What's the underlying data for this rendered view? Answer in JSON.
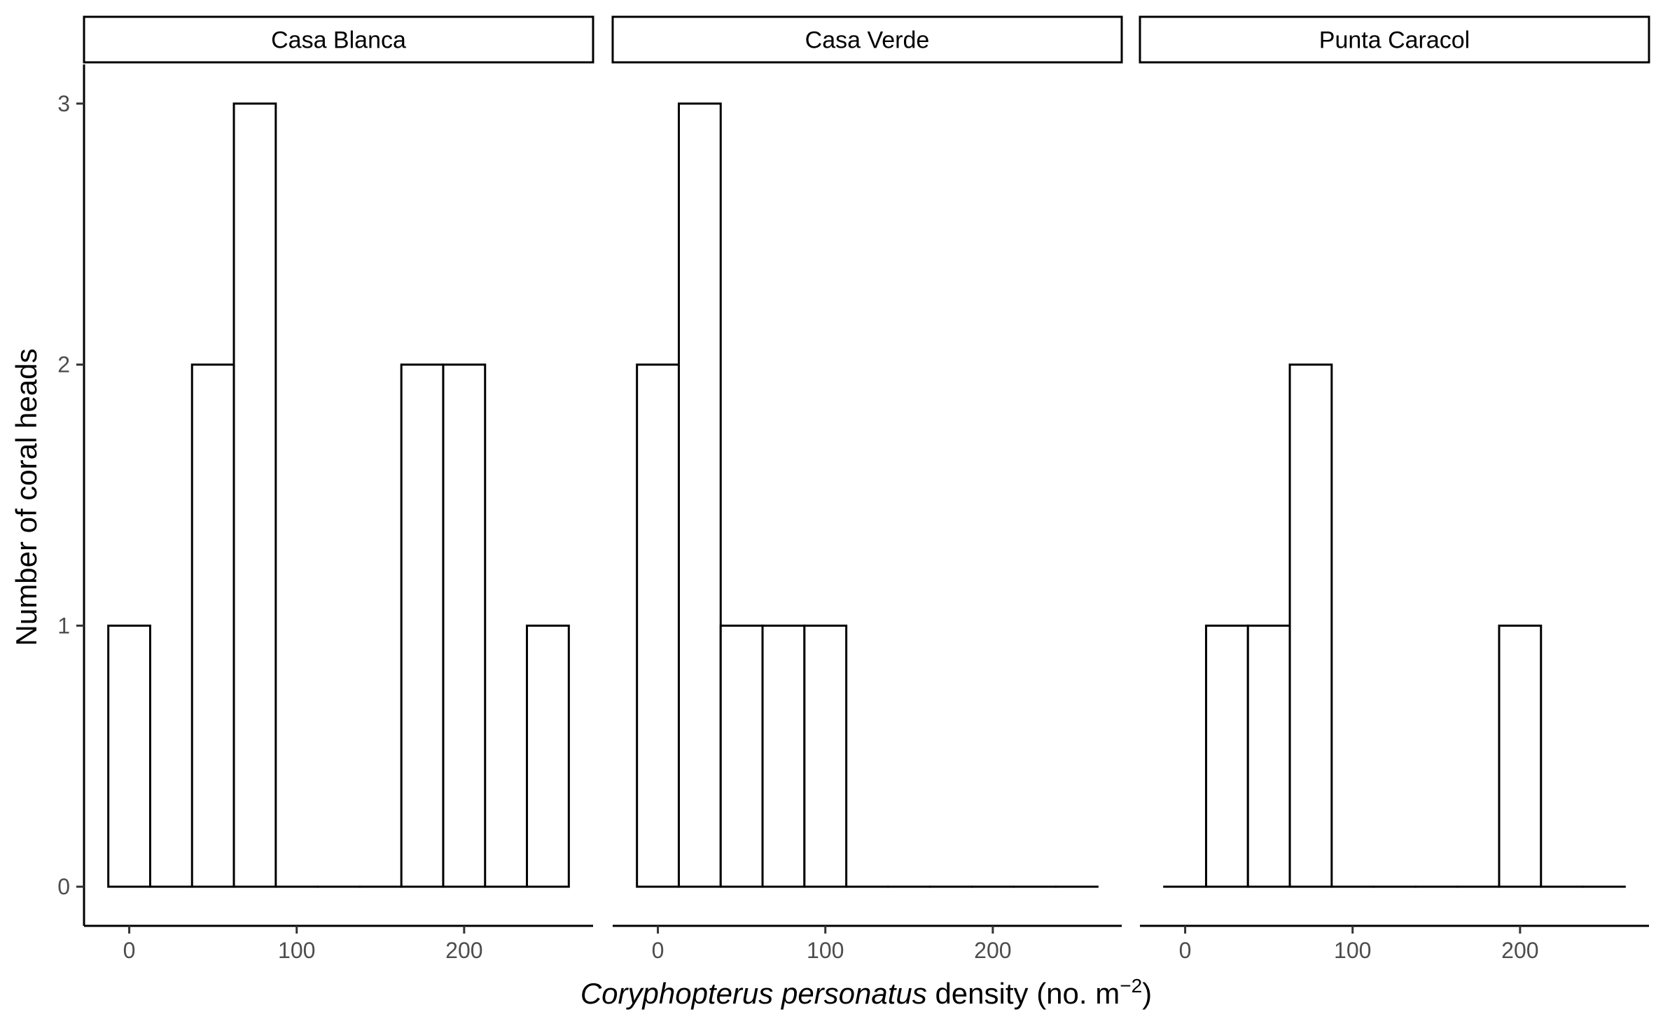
{
  "chart_data": {
    "type": "bar",
    "subtype": "faceted histogram",
    "ylabel": "Number of coral heads",
    "xlabel": {
      "italic": "Coryphopterus personatus",
      "plain": " density (no. m",
      "superscript": "−2",
      "close": ")"
    },
    "xlim": [
      -27,
      277
    ],
    "ylim": [
      -0.15,
      3.15
    ],
    "x_ticks": [
      0,
      100,
      200
    ],
    "x_tick_labels": [
      "0",
      "100",
      "200"
    ],
    "y_ticks": [
      0,
      1,
      2,
      3
    ],
    "y_tick_labels": [
      "0",
      "1",
      "2",
      "3"
    ],
    "bin_width": 25,
    "bin_centers": [
      0,
      25,
      50,
      75,
      100,
      125,
      150,
      175,
      200,
      225,
      250
    ],
    "bar_fill": "#ffffff",
    "bar_outline": "#000000",
    "grid": false,
    "panels": [
      {
        "label": "Casa Blanca",
        "counts": [
          1,
          0,
          2,
          3,
          0,
          0,
          0,
          2,
          2,
          0,
          1
        ]
      },
      {
        "label": "Casa Verde",
        "counts": [
          2,
          3,
          1,
          1,
          1,
          0,
          0,
          0,
          0,
          0,
          0
        ]
      },
      {
        "label": "Punta Caracol",
        "counts": [
          0,
          1,
          1,
          2,
          0,
          0,
          0,
          0,
          1,
          0,
          0
        ]
      }
    ]
  }
}
